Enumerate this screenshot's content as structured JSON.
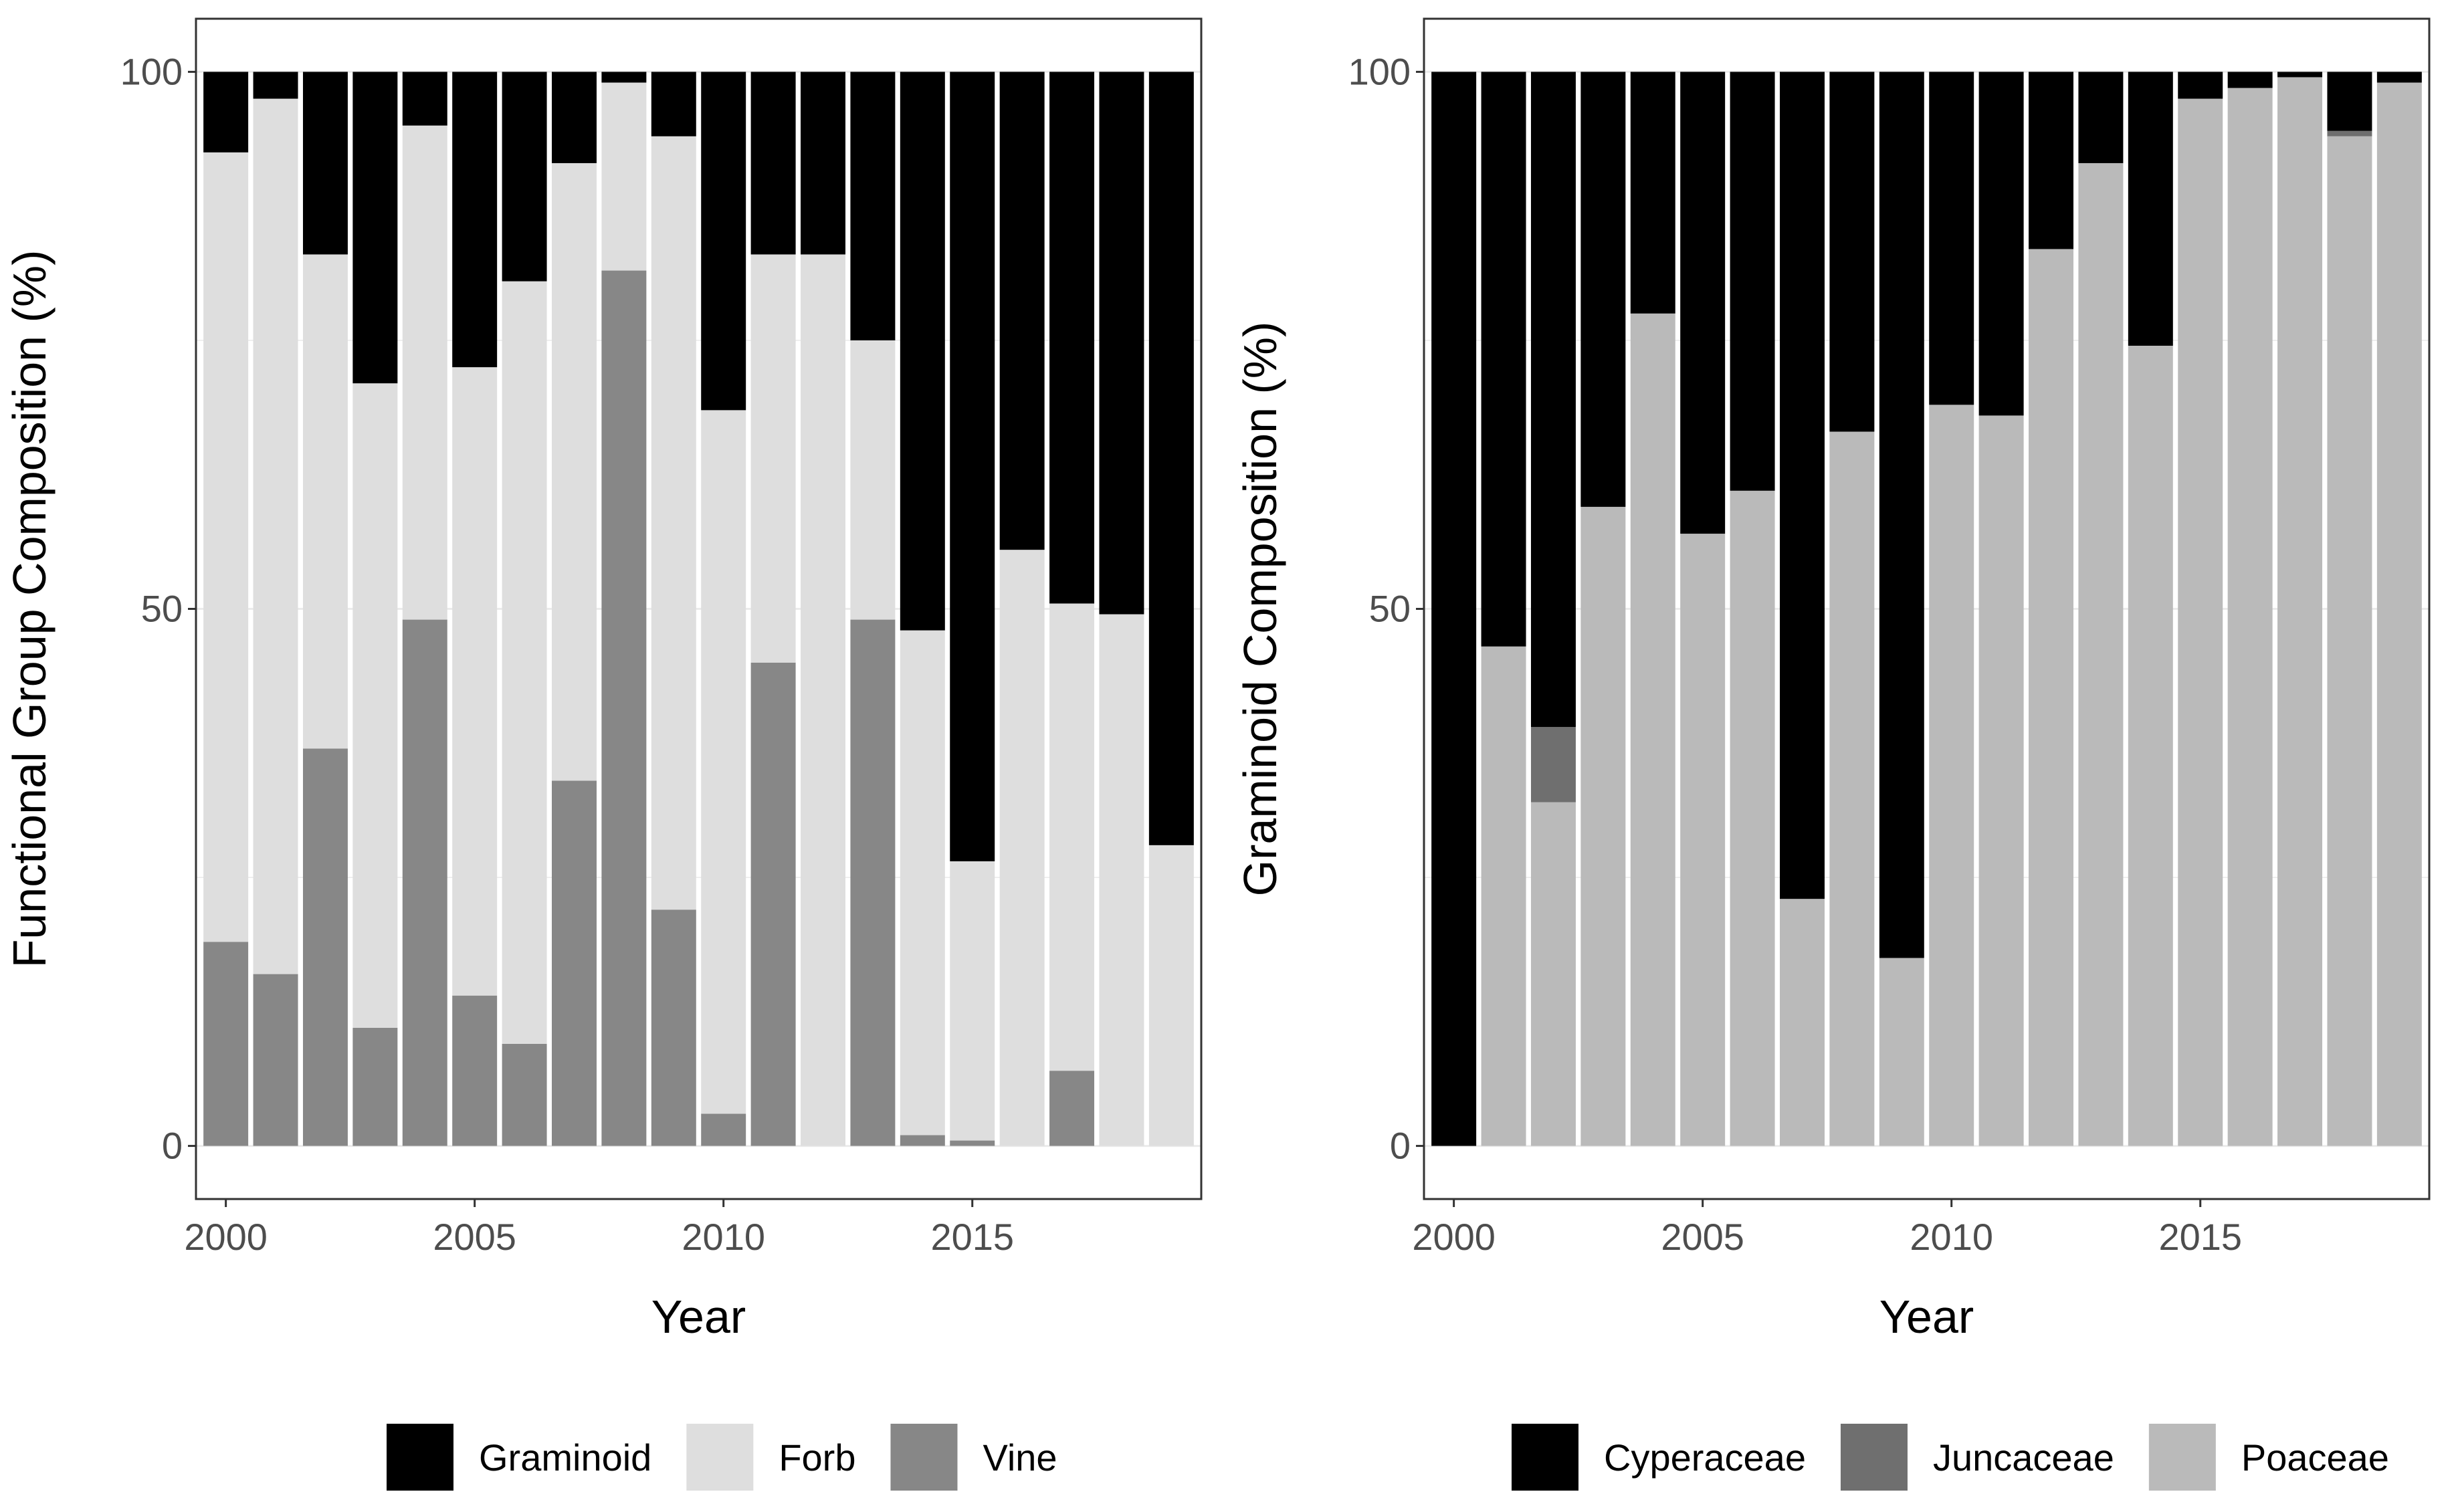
{
  "chart_data": [
    {
      "type": "bar",
      "stacked": true,
      "title": "",
      "xlabel": "Year",
      "ylabel": "Functional Group Composition (%)",
      "ylim": [
        0,
        100
      ],
      "yticks": [
        0,
        50,
        100
      ],
      "xticks": [
        2000,
        2005,
        2010,
        2015
      ],
      "grid": true,
      "legend_position": "bottom",
      "categories": [
        2000,
        2001,
        2002,
        2003,
        2004,
        2005,
        2006,
        2007,
        2008,
        2009,
        2010,
        2011,
        2012,
        2013,
        2014,
        2015,
        2016,
        2017,
        2018,
        2019
      ],
      "series": [
        {
          "name": "Vine",
          "color": "#878787",
          "values": [
            19,
            16,
            37,
            11,
            49,
            14,
            9.5,
            34,
            81.5,
            22,
            3,
            45,
            0,
            49,
            1,
            0.5,
            0,
            7,
            0,
            0
          ]
        },
        {
          "name": "Forb",
          "color": "#dedede",
          "values": [
            73.5,
            81.5,
            46,
            60,
            46,
            58.5,
            71,
            57.5,
            17.5,
            72,
            65.5,
            38,
            83,
            26,
            47,
            26,
            55.5,
            43.5,
            49.5,
            28
          ]
        },
        {
          "name": "Graminoid",
          "color": "#000000",
          "values": [
            7.5,
            2.5,
            17,
            29,
            5,
            27.5,
            19.5,
            8.5,
            1,
            6,
            31.5,
            17,
            17,
            25,
            52,
            73.5,
            44.5,
            49.5,
            50.5,
            72
          ]
        }
      ],
      "legend_order": [
        "Graminoid",
        "Forb",
        "Vine"
      ]
    },
    {
      "type": "bar",
      "stacked": true,
      "title": "",
      "xlabel": "Year",
      "ylabel": "Graminoid Composition (%)",
      "ylim": [
        0,
        100
      ],
      "yticks": [
        0,
        50,
        100
      ],
      "xticks": [
        2000,
        2005,
        2010,
        2015
      ],
      "grid": true,
      "legend_position": "bottom",
      "categories": [
        2000,
        2001,
        2002,
        2003,
        2004,
        2005,
        2006,
        2007,
        2008,
        2009,
        2010,
        2011,
        2012,
        2013,
        2014,
        2015,
        2016,
        2017,
        2018,
        2019
      ],
      "series": [
        {
          "name": "Poaceae",
          "color": "#bababa",
          "values": [
            0,
            46.5,
            32,
            59.5,
            77.5,
            57,
            61,
            23,
            66.5,
            17.5,
            69,
            68,
            83.5,
            91.5,
            74.5,
            97.5,
            98.5,
            99.5,
            94,
            99
          ]
        },
        {
          "name": "Juncaceae",
          "color": "#6f6f6f",
          "values": [
            0,
            0,
            7,
            0,
            0,
            0,
            0,
            0,
            0,
            0,
            0,
            0,
            0,
            0,
            0,
            0,
            0,
            0,
            0.5,
            0
          ]
        },
        {
          "name": "Cyperaceae",
          "color": "#000000",
          "values": [
            100,
            53.5,
            61,
            40.5,
            22.5,
            43,
            39,
            77,
            33.5,
            82.5,
            31,
            32,
            16.5,
            8.5,
            25.5,
            2.5,
            1.5,
            0.5,
            5.5,
            1
          ]
        }
      ],
      "legend_order": [
        "Cyperaceae",
        "Juncaceae",
        "Poaceae"
      ]
    }
  ]
}
